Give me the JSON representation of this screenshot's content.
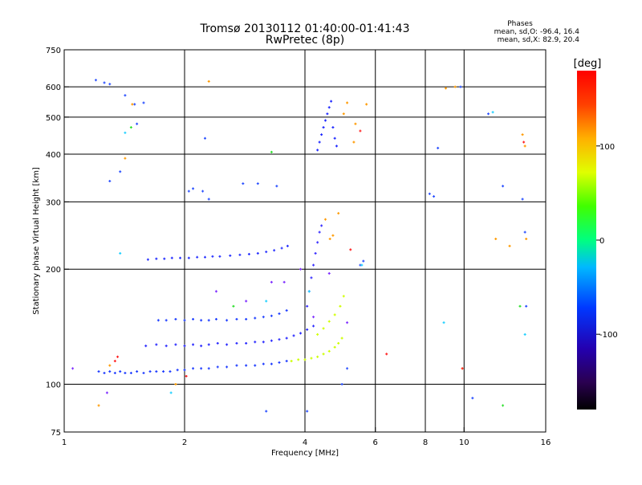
{
  "chart_data": {
    "type": "scatter",
    "title": "Tromsø 20130112 01:40:00-01:41:43",
    "subtitle": "RwPretec (8p)",
    "xlabel": "Frequency [MHz]",
    "ylabel": "Stationary phase Virtual Height [km]",
    "x_scale": "log",
    "y_scale": "log",
    "xlim": [
      1,
      16
    ],
    "ylim": [
      75,
      750
    ],
    "x_ticks": [
      1,
      2,
      4,
      6,
      8,
      10,
      16
    ],
    "y_ticks": [
      75,
      100,
      200,
      300,
      400,
      500,
      600,
      750
    ],
    "x_gridlines": [
      2,
      4,
      6,
      8,
      10
    ],
    "y_gridlines": [
      100,
      200,
      300,
      400,
      500,
      600
    ],
    "grid": true,
    "info": {
      "heading": "Phases",
      "line_o": "mean, sd,O: -96.4, 16.4",
      "line_x": "mean, sd,X:  82.9, 20.4"
    },
    "colorbar": {
      "label": "[deg]",
      "range": [
        -180,
        180
      ],
      "ticks": [
        100,
        0,
        -100
      ],
      "palette": "rainbow"
    },
    "series": [
      {
        "name": "",
        "color": "#1e3cff",
        "x": [
          1.22,
          1.26,
          1.3,
          1.34,
          1.38,
          1.42,
          1.47,
          1.52,
          1.58,
          1.64,
          1.7,
          1.77,
          1.84,
          1.92,
          2.0,
          2.1,
          2.2,
          2.3,
          2.42,
          2.55,
          2.7,
          2.85,
          3.0,
          3.15,
          3.3,
          3.45,
          3.6
        ],
        "y": [
          108,
          107,
          108,
          107,
          108,
          107,
          107,
          108,
          107,
          108,
          108,
          108,
          108,
          109,
          109,
          110,
          110,
          110,
          111,
          111,
          112,
          112,
          112,
          113,
          113,
          114,
          115
        ]
      },
      {
        "name": "",
        "color": "#ccff00",
        "x": [
          3.7,
          3.85,
          4.0,
          4.15,
          4.3,
          4.45,
          4.6,
          4.75,
          4.85,
          4.95
        ],
        "y": [
          115,
          116,
          116,
          117,
          118,
          120,
          122,
          125,
          128,
          132
        ]
      },
      {
        "name": "",
        "color": "#d0ff00",
        "x": [
          4.3,
          4.45,
          4.6,
          4.75,
          4.9,
          5.0
        ],
        "y": [
          135,
          140,
          146,
          152,
          160,
          170
        ]
      },
      {
        "name": "",
        "color": "#2a2aff",
        "x": [
          1.6,
          1.7,
          1.8,
          1.9,
          2.0,
          2.1,
          2.2,
          2.3,
          2.42,
          2.55,
          2.7,
          2.85,
          3.0,
          3.15,
          3.3,
          3.45,
          3.6,
          3.75,
          3.9,
          4.05,
          4.2
        ],
        "y": [
          126,
          127,
          126,
          127,
          126,
          127,
          126,
          127,
          128,
          127,
          128,
          128,
          129,
          129,
          130,
          131,
          132,
          134,
          136,
          139,
          142
        ]
      },
      {
        "name": "",
        "color": "#2040ff",
        "x": [
          1.72,
          1.8,
          1.9,
          2.0,
          2.1,
          2.2,
          2.3,
          2.4,
          2.55,
          2.7,
          2.85,
          3.0,
          3.15,
          3.3,
          3.45,
          3.6
        ],
        "y": [
          147,
          147,
          148,
          147,
          148,
          147,
          147,
          148,
          147,
          148,
          148,
          149,
          150,
          151,
          153,
          156
        ]
      },
      {
        "name": "",
        "color": "#2630ff",
        "x": [
          1.62,
          1.7,
          1.78,
          1.86,
          1.95,
          2.05,
          2.15,
          2.25,
          2.35,
          2.45,
          2.6,
          2.75,
          2.9,
          3.05,
          3.2,
          3.35,
          3.5,
          3.62
        ],
        "y": [
          212,
          213,
          213,
          214,
          214,
          214,
          215,
          215,
          216,
          216,
          217,
          218,
          219,
          220,
          222,
          224,
          227,
          230
        ]
      },
      {
        "name": "",
        "color": "#1e28ff",
        "x": [
          4.3,
          4.35,
          4.4,
          4.45,
          4.5,
          4.55,
          4.6,
          4.65,
          4.7,
          4.75,
          4.8
        ],
        "y": [
          410,
          430,
          450,
          470,
          490,
          510,
          530,
          550,
          470,
          440,
          420
        ]
      },
      {
        "name": "",
        "color": "#3a30ff",
        "x": [
          4.05,
          4.1,
          4.15,
          4.2,
          4.25,
          4.3,
          4.35,
          4.4
        ],
        "y": [
          160,
          175,
          190,
          205,
          220,
          235,
          250,
          260
        ]
      },
      {
        "name": "",
        "color": "#2a50ff",
        "x": [
          1.2,
          1.26,
          1.3,
          1.42,
          1.5,
          1.58,
          1.52,
          1.3,
          1.38,
          2.05,
          2.1,
          2.22,
          2.25,
          2.3,
          2.8,
          3.05,
          3.4,
          3.2,
          4.05,
          4.95,
          5.1,
          5.5,
          5.6,
          8.2,
          8.4,
          8.6,
          9.8,
          10.5,
          11.5,
          12.5,
          14.0,
          14.2,
          14.3
        ],
        "y": [
          625,
          615,
          610,
          570,
          540,
          545,
          480,
          340,
          360,
          320,
          325,
          320,
          440,
          305,
          335,
          335,
          330,
          85,
          85,
          100,
          110,
          205,
          210,
          315,
          310,
          415,
          600,
          92,
          510,
          330,
          305,
          250,
          160
        ]
      },
      {
        "name": "",
        "color": "#ff9a00",
        "x": [
          1.22,
          1.3,
          1.42,
          1.48,
          1.9,
          2.3,
          4.5,
          4.62,
          4.7,
          4.85,
          5.0,
          5.1,
          5.3,
          5.35,
          5.7,
          9.0,
          9.5,
          9.9,
          12.0,
          13.0,
          14.0,
          14.2,
          14.3
        ],
        "y": [
          88,
          112,
          390,
          540,
          100,
          620,
          270,
          240,
          245,
          280,
          510,
          545,
          430,
          480,
          540,
          595,
          600,
          110,
          240,
          230,
          450,
          420,
          240
        ]
      },
      {
        "name": "",
        "color": "#ff2020",
        "x": [
          1.34,
          1.36,
          2.02,
          5.5,
          5.2,
          6.4,
          9.9,
          14.1
        ],
        "y": [
          115,
          118,
          105,
          460,
          225,
          120,
          110,
          430
        ]
      },
      {
        "name": "",
        "color": "#20d0ff",
        "x": [
          1.42,
          1.38,
          1.85,
          3.2,
          4.1,
          5.55,
          8.9,
          11.8,
          14.2
        ],
        "y": [
          455,
          220,
          95,
          165,
          175,
          205,
          145,
          515,
          135
        ]
      },
      {
        "name": "",
        "color": "#30e030",
        "x": [
          1.47,
          2.65,
          3.3,
          12.5,
          13.8
        ],
        "y": [
          470,
          160,
          405,
          88,
          160
        ]
      },
      {
        "name": "",
        "color": "#8030ff",
        "x": [
          1.05,
          1.28,
          2.4,
          2.85,
          3.3,
          3.55,
          3.9,
          4.2,
          4.6,
          5.1
        ],
        "y": [
          110,
          95,
          175,
          165,
          185,
          185,
          200,
          150,
          195,
          145
        ]
      }
    ]
  }
}
